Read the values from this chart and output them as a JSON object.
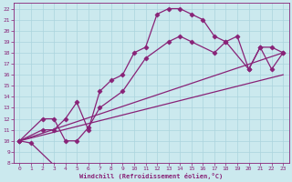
{
  "xlabel": "Windchill (Refroidissement éolien,°C)",
  "xlim": [
    -0.5,
    23.5
  ],
  "ylim": [
    8,
    22.5
  ],
  "xticks": [
    0,
    1,
    2,
    3,
    4,
    5,
    6,
    7,
    8,
    9,
    10,
    11,
    12,
    13,
    14,
    15,
    16,
    17,
    18,
    19,
    20,
    21,
    22,
    23
  ],
  "yticks": [
    8,
    9,
    10,
    11,
    12,
    13,
    14,
    15,
    16,
    17,
    18,
    19,
    20,
    21,
    22
  ],
  "bg_color": "#cbe9ee",
  "line_color": "#882277",
  "grid_color": "#aad4dd",
  "line1_x": [
    0,
    1,
    3
  ],
  "line1_y": [
    10,
    9.8,
    7.8
  ],
  "line2_x": [
    0,
    2,
    3,
    4,
    5,
    6,
    7,
    8,
    9,
    10,
    11,
    12,
    13,
    14,
    15,
    16,
    17,
    18,
    19,
    20,
    21,
    22,
    23
  ],
  "line2_y": [
    10,
    11.0,
    11.0,
    12.0,
    13.5,
    11.0,
    14.5,
    15.5,
    16.0,
    18.0,
    18.5,
    21.5,
    22.0,
    22.0,
    21.5,
    21.0,
    19.5,
    19.0,
    19.5,
    16.5,
    18.5,
    18.5,
    18.0
  ],
  "line3_x": [
    0,
    2,
    3,
    4,
    5,
    6,
    7,
    9,
    11,
    13,
    14,
    15,
    17,
    18,
    20,
    21,
    22,
    23
  ],
  "line3_y": [
    10,
    12.0,
    12.0,
    10.0,
    10.0,
    11.2,
    13.0,
    14.5,
    17.5,
    19.0,
    19.5,
    19.0,
    18.0,
    19.0,
    16.5,
    18.5,
    16.5,
    18.0
  ],
  "line4_x": [
    0,
    23
  ],
  "line4_y": [
    10,
    18.0
  ],
  "line5_x": [
    0,
    23
  ],
  "line5_y": [
    10,
    16.0
  ]
}
